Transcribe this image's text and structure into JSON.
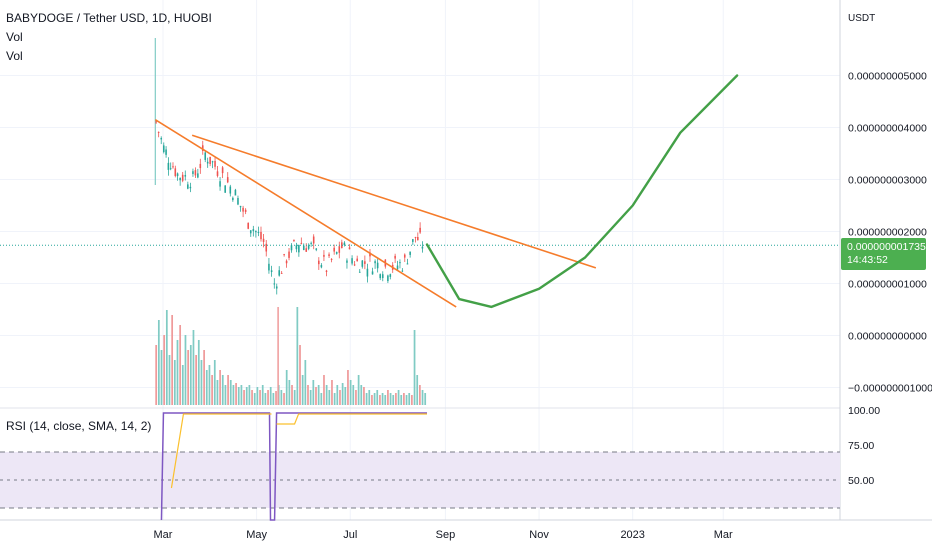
{
  "header": {
    "symbol_line": "BABYDOGE / Tether USD, 1D, HUOBI",
    "vol_label_1": "Vol",
    "vol_label_2": "Vol"
  },
  "price_axis": {
    "unit_label": "USDT",
    "current_price_label": "0.000000001735",
    "countdown": "14:43:52"
  },
  "rsi": {
    "legend": "RSI (14, close, SMA, 14, 2)"
  },
  "colors": {
    "up": "#26a69a",
    "down": "#ef5350",
    "trendline": "#f57c2b",
    "projection": "#43a047",
    "rsi_line": "#7e57c2",
    "rsi_ma": "#fbc02d",
    "rsi_band": "#ede7f6",
    "badge": "#4caf50"
  },
  "chart_data": [
    {
      "type": "line",
      "series_kind": "candlestick-price",
      "y_axis": {
        "ticks": [
          {
            "value": 5e-09,
            "label": "0.000000005000"
          },
          {
            "value": 4e-09,
            "label": "0.000000004000"
          },
          {
            "value": 3e-09,
            "label": "0.000000003000"
          },
          {
            "value": 2e-09,
            "label": "0.000000002000"
          },
          {
            "value": 1e-09,
            "label": "0.000000001000"
          },
          {
            "value": 0,
            "label": "0.000000000000"
          },
          {
            "value": -1e-09,
            "label": "−0.000000001000"
          }
        ],
        "ylim": [
          -1.1e-09,
          5.8e-09
        ]
      },
      "x_axis": {
        "ticks": [
          "Mar",
          "May",
          "Jul",
          "Sep",
          "Nov",
          "2023",
          "Mar"
        ],
        "range": [
          "2022-02-01",
          "2023-04-20"
        ]
      },
      "last_price": 1.735e-09,
      "price_path": [
        {
          "date": "2022-02-24",
          "value": 4.1e-09
        },
        {
          "date": "2022-03-01",
          "value": 3.6e-09
        },
        {
          "date": "2022-03-10",
          "value": 3.1e-09
        },
        {
          "date": "2022-03-20",
          "value": 3e-09
        },
        {
          "date": "2022-03-28",
          "value": 3.5e-09
        },
        {
          "date": "2022-04-05",
          "value": 3.2e-09
        },
        {
          "date": "2022-04-15",
          "value": 2.8e-09
        },
        {
          "date": "2022-04-25",
          "value": 2.2e-09
        },
        {
          "date": "2022-05-05",
          "value": 1.8e-09
        },
        {
          "date": "2022-05-12",
          "value": 1e-09
        },
        {
          "date": "2022-05-20",
          "value": 1.5e-09
        },
        {
          "date": "2022-05-28",
          "value": 1.8e-09
        },
        {
          "date": "2022-06-05",
          "value": 1.7e-09
        },
        {
          "date": "2022-06-15",
          "value": 1.3e-09
        },
        {
          "date": "2022-06-25",
          "value": 1.7e-09
        },
        {
          "date": "2022-07-05",
          "value": 1.4e-09
        },
        {
          "date": "2022-07-15",
          "value": 1.4e-09
        },
        {
          "date": "2022-07-25",
          "value": 1.3e-09
        },
        {
          "date": "2022-08-05",
          "value": 1.4e-09
        },
        {
          "date": "2022-08-12",
          "value": 1.9e-09
        },
        {
          "date": "2022-08-18",
          "value": 1.735e-09
        }
      ],
      "trendlines": [
        {
          "name": "",
          "from": {
            "date": "2022-02-24",
            "value": 4.15e-09
          },
          "to": {
            "date": "2022-09-08",
            "value": 5.5e-10
          }
        },
        {
          "name": "",
          "from": {
            "date": "2022-03-20",
            "value": 3.85e-09
          },
          "to": {
            "date": "2022-12-08",
            "value": 1.3e-09
          }
        }
      ],
      "projection_curve": [
        {
          "date": "2022-08-20",
          "value": 1.75e-09
        },
        {
          "date": "2022-09-10",
          "value": 7e-10
        },
        {
          "date": "2022-10-01",
          "value": 5.5e-10
        },
        {
          "date": "2022-11-01",
          "value": 9e-10
        },
        {
          "date": "2022-12-01",
          "value": 1.5e-09
        },
        {
          "date": "2023-01-01",
          "value": 2.5e-09
        },
        {
          "date": "2023-02-01",
          "value": 3.9e-09
        },
        {
          "date": "2023-03-10",
          "value": 5e-09
        }
      ]
    },
    {
      "type": "bar",
      "series_kind": "volume",
      "relative_values": [
        0.6,
        0.85,
        0.55,
        0.7,
        0.95,
        0.5,
        0.9,
        0.45,
        0.65,
        0.8,
        0.4,
        0.7,
        0.55,
        0.6,
        0.75,
        0.5,
        0.65,
        0.45,
        0.55,
        0.35,
        0.4,
        0.3,
        0.45,
        0.25,
        0.35,
        0.3,
        0.2,
        0.3,
        0.25,
        0.2,
        0.22,
        0.18,
        0.2,
        0.15,
        0.18,
        0.2,
        0.15,
        0.12,
        0.18,
        0.15,
        0.2,
        0.12,
        0.15,
        0.18,
        0.12,
        0.14,
        0.2,
        0.15,
        0.12,
        0.35,
        0.25,
        0.2,
        0.15,
        0.98,
        0.6,
        0.3,
        0.45,
        0.2,
        0.15,
        0.25,
        0.18,
        0.2,
        0.12,
        0.3,
        0.2,
        0.15,
        0.25,
        0.12,
        0.2,
        0.15,
        0.22,
        0.18,
        0.35,
        0.25,
        0.2,
        0.15,
        0.3,
        0.2,
        0.18,
        0.12,
        0.15,
        0.1,
        0.12,
        0.15,
        0.1,
        0.12,
        0.1,
        0.15,
        0.12,
        0.1,
        0.12,
        0.15,
        0.1,
        0.12,
        0.1,
        0.12,
        0.1,
        0.75,
        0.3,
        0.2,
        0.15,
        0.12
      ]
    },
    {
      "type": "line",
      "series_kind": "rsi",
      "y_axis": {
        "ticks": [
          {
            "value": 100,
            "label": "100.00"
          },
          {
            "value": 75,
            "label": "75.00"
          },
          {
            "value": 50,
            "label": "50.00"
          }
        ]
      },
      "levels": [
        70,
        50,
        30
      ]
    }
  ]
}
